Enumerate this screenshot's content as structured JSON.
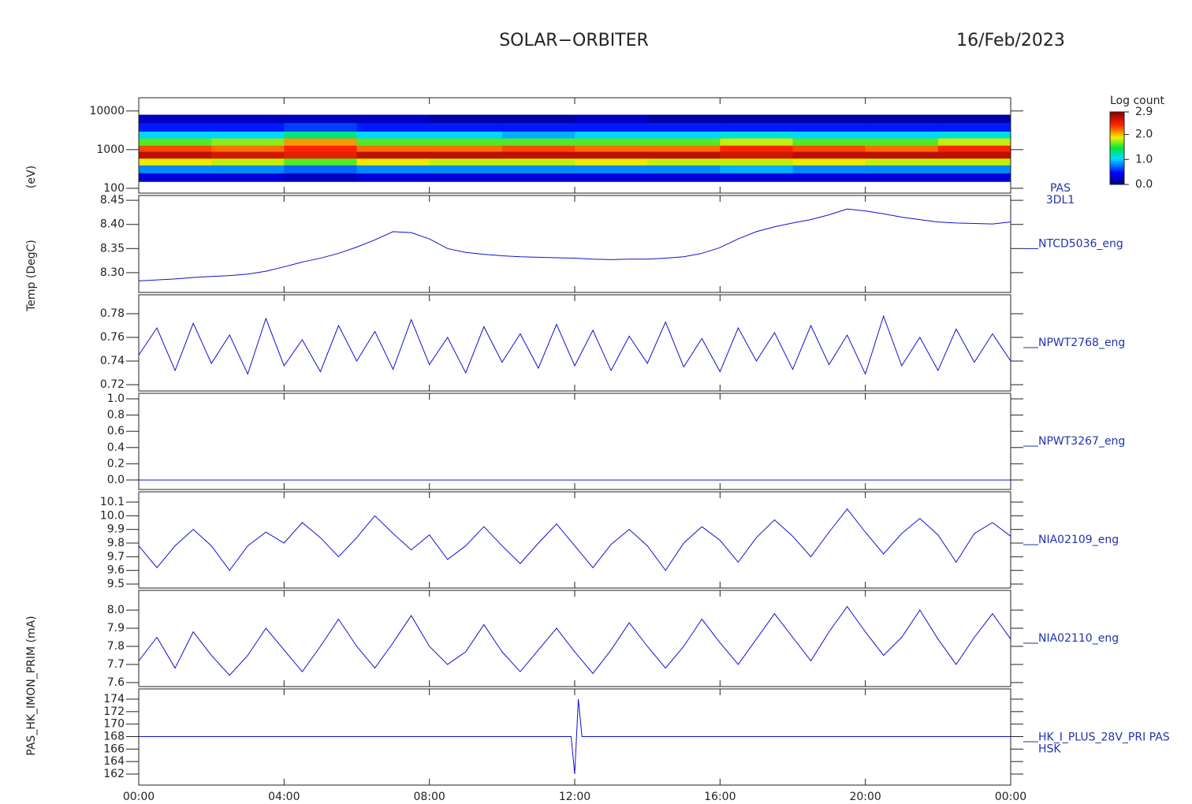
{
  "title": "SOLAR−ORBITER",
  "date": "16/Feb/2023",
  "time_axis": {
    "xlim": [
      0,
      24
    ],
    "xticks": [
      {
        "value": 0,
        "label": "00:00"
      },
      {
        "value": 4,
        "label": "04:00"
      },
      {
        "value": 8,
        "label": "08:00"
      },
      {
        "value": 12,
        "label": "12:00"
      },
      {
        "value": 16,
        "label": "16:00"
      },
      {
        "value": 20,
        "label": "20:00"
      },
      {
        "value": 24,
        "label": "00:00"
      }
    ]
  },
  "chart_data": [
    {
      "type": "heatmap",
      "label": [
        "PAS",
        "3DL1"
      ],
      "ylabel": "(eV)",
      "yscale": "log",
      "ylim": [
        75,
        22000
      ],
      "yticks": [
        100,
        1000,
        10000
      ],
      "xbins": [
        0,
        2,
        4,
        6,
        8,
        10,
        12,
        14,
        16,
        18,
        20,
        22,
        24
      ],
      "ybins": [
        150,
        250,
        400,
        600,
        900,
        1300,
        2000,
        3000,
        5000,
        8000
      ],
      "values": [
        [
          0.3,
          0.3,
          0.2,
          0.3,
          0.3,
          0.3,
          0.3,
          0.3,
          0.3,
          0.3,
          0.3,
          0.3
        ],
        [
          0.8,
          0.8,
          0.7,
          0.8,
          0.8,
          0.8,
          0.8,
          0.8,
          0.9,
          0.8,
          0.8,
          0.8
        ],
        [
          1.9,
          1.8,
          1.6,
          1.9,
          1.8,
          1.8,
          1.9,
          1.8,
          1.8,
          1.9,
          1.8,
          1.8
        ],
        [
          2.7,
          2.6,
          2.5,
          2.7,
          2.7,
          2.7,
          2.7,
          2.7,
          2.6,
          2.7,
          2.7,
          2.7
        ],
        [
          2.3,
          2.2,
          2.4,
          2.2,
          2.2,
          2.3,
          2.2,
          2.2,
          2.4,
          2.3,
          2.2,
          2.4
        ],
        [
          1.6,
          1.7,
          2.1,
          1.6,
          1.6,
          1.6,
          1.6,
          1.6,
          1.8,
          1.6,
          1.6,
          1.8
        ],
        [
          1.0,
          1.0,
          1.3,
          1.0,
          1.0,
          0.9,
          1.0,
          1.0,
          1.1,
          1.0,
          1.0,
          1.1
        ],
        [
          0.5,
          0.5,
          0.6,
          0.5,
          0.5,
          0.5,
          0.5,
          0.5,
          0.5,
          0.5,
          0.5,
          0.5
        ],
        [
          0.2,
          0.2,
          0.2,
          0.2,
          0.1,
          0.1,
          0.2,
          0.1,
          0.1,
          0.1,
          0.1,
          0.1
        ]
      ],
      "zlim": [
        0,
        2.9
      ],
      "colorbar_title": "Log count",
      "zticks": [
        {
          "value": 0,
          "label": "0.0"
        },
        {
          "value": 1,
          "label": "1.0"
        },
        {
          "value": 2,
          "label": "2.0"
        },
        2.9
      ]
    },
    {
      "type": "line",
      "label": [
        "NTCD5036_eng"
      ],
      "ylabel": "Temp (DegC)",
      "color": "#1010d0",
      "ylim": [
        8.259,
        8.46
      ],
      "yticks": [
        {
          "value": 8.3,
          "label": "8.30"
        },
        8.35,
        {
          "value": 8.4,
          "label": "8.40"
        },
        8.45
      ],
      "x": [
        0,
        0.5,
        1,
        1.5,
        2,
        2.5,
        3,
        3.5,
        4,
        4.5,
        5,
        5.5,
        6,
        6.5,
        7,
        7.5,
        8,
        8.5,
        9,
        9.5,
        10,
        10.5,
        11,
        11.5,
        12,
        12.5,
        13,
        13.5,
        14,
        14.5,
        15,
        15.5,
        16,
        16.5,
        17,
        17.5,
        18,
        18.5,
        19,
        19.5,
        20,
        20.5,
        21,
        21.5,
        22,
        22.5,
        23,
        23.5,
        24
      ],
      "values": [
        8.283,
        8.285,
        8.287,
        8.29,
        8.292,
        8.294,
        8.297,
        8.303,
        8.312,
        8.322,
        8.33,
        8.34,
        8.353,
        8.368,
        8.385,
        8.383,
        8.37,
        8.35,
        8.342,
        8.338,
        8.335,
        8.333,
        8.332,
        8.331,
        8.33,
        8.328,
        8.327,
        8.328,
        8.328,
        8.33,
        8.333,
        8.34,
        8.352,
        8.37,
        8.385,
        8.395,
        8.403,
        8.41,
        8.42,
        8.432,
        8.428,
        8.422,
        8.415,
        8.41,
        8.405,
        8.403,
        8.402,
        8.401,
        8.405
      ]
    },
    {
      "type": "line",
      "label": [
        "NPWT2768_eng"
      ],
      "color": "#1010d0",
      "ylim": [
        0.7147,
        0.796
      ],
      "yticks": [
        0.72,
        0.74,
        0.76,
        0.78
      ],
      "x": [
        0,
        0.5,
        1,
        1.5,
        2,
        2.5,
        3,
        3.5,
        4,
        4.5,
        5,
        5.5,
        6,
        6.5,
        7,
        7.5,
        8,
        8.5,
        9,
        9.5,
        10,
        10.5,
        11,
        11.5,
        12,
        12.5,
        13,
        13.5,
        14,
        14.5,
        15,
        15.5,
        16,
        16.5,
        17,
        17.5,
        18,
        18.5,
        19,
        19.5,
        20,
        20.5,
        21,
        21.5,
        22,
        22.5,
        23,
        23.5,
        24
      ],
      "values": [
        0.745,
        0.768,
        0.732,
        0.772,
        0.738,
        0.762,
        0.729,
        0.776,
        0.736,
        0.758,
        0.731,
        0.77,
        0.74,
        0.765,
        0.733,
        0.775,
        0.737,
        0.76,
        0.73,
        0.769,
        0.739,
        0.763,
        0.734,
        0.771,
        0.736,
        0.766,
        0.732,
        0.761,
        0.738,
        0.773,
        0.735,
        0.759,
        0.731,
        0.768,
        0.74,
        0.764,
        0.733,
        0.77,
        0.737,
        0.762,
        0.729,
        0.778,
        0.736,
        0.76,
        0.732,
        0.767,
        0.739,
        0.763,
        0.74
      ]
    },
    {
      "type": "line",
      "label": [
        "NPWT3267_eng"
      ],
      "color": "#1010d0",
      "ylim": [
        -0.117,
        1.068
      ],
      "yticks": [
        {
          "value": 0,
          "label": "0.0"
        },
        0.2,
        0.4,
        0.6,
        0.8,
        {
          "value": 1,
          "label": "1.0"
        }
      ],
      "x": [
        0,
        6,
        12,
        18,
        24
      ],
      "values": [
        0,
        0,
        0,
        0,
        0
      ]
    },
    {
      "type": "line",
      "label": [
        "NIA02109_eng"
      ],
      "color": "#1010d0",
      "ylim": [
        9.471,
        10.175
      ],
      "yticks": [
        9.5,
        9.6,
        9.7,
        9.8,
        9.9,
        {
          "value": 10,
          "label": "10.0"
        },
        10.1
      ],
      "x": [
        0,
        0.5,
        1,
        1.5,
        2,
        2.5,
        3,
        3.5,
        4,
        4.5,
        5,
        5.5,
        6,
        6.5,
        7,
        7.5,
        8,
        8.5,
        9,
        9.5,
        10,
        10.5,
        11,
        11.5,
        12,
        12.5,
        13,
        13.5,
        14,
        14.5,
        15,
        15.5,
        16,
        16.5,
        17,
        17.5,
        18,
        18.5,
        19,
        19.5,
        20,
        20.5,
        21,
        21.5,
        22,
        22.5,
        23,
        23.5,
        24
      ],
      "values": [
        9.78,
        9.62,
        9.78,
        9.9,
        9.78,
        9.6,
        9.78,
        9.88,
        9.8,
        9.95,
        9.84,
        9.7,
        9.84,
        10.0,
        9.87,
        9.75,
        9.86,
        9.68,
        9.78,
        9.92,
        9.78,
        9.65,
        9.8,
        9.94,
        9.78,
        9.62,
        9.79,
        9.9,
        9.78,
        9.6,
        9.8,
        9.92,
        9.82,
        9.66,
        9.84,
        9.97,
        9.85,
        9.7,
        9.88,
        10.05,
        9.88,
        9.72,
        9.87,
        9.98,
        9.86,
        9.66,
        9.87,
        9.95,
        9.85
      ]
    },
    {
      "type": "line",
      "label": [
        "NIA02110_eng"
      ],
      "color": "#1010d0",
      "ylim": [
        7.578,
        8.109
      ],
      "yticks": [
        7.6,
        7.7,
        7.8,
        7.9,
        {
          "value": 8,
          "label": "8.0"
        }
      ],
      "x": [
        0,
        0.5,
        1,
        1.5,
        2,
        2.5,
        3,
        3.5,
        4,
        4.5,
        5,
        5.5,
        6,
        6.5,
        7,
        7.5,
        8,
        8.5,
        9,
        9.5,
        10,
        10.5,
        11,
        11.5,
        12,
        12.5,
        13,
        13.5,
        14,
        14.5,
        15,
        15.5,
        16,
        16.5,
        17,
        17.5,
        18,
        18.5,
        19,
        19.5,
        20,
        20.5,
        21,
        21.5,
        22,
        22.5,
        23,
        23.5,
        24
      ],
      "values": [
        7.72,
        7.85,
        7.68,
        7.88,
        7.75,
        7.64,
        7.75,
        7.9,
        7.78,
        7.66,
        7.8,
        7.95,
        7.8,
        7.68,
        7.82,
        7.97,
        7.8,
        7.7,
        7.77,
        7.92,
        7.77,
        7.66,
        7.78,
        7.9,
        7.77,
        7.65,
        7.78,
        7.93,
        7.8,
        7.68,
        7.8,
        7.95,
        7.82,
        7.7,
        7.84,
        7.98,
        7.85,
        7.72,
        7.88,
        8.02,
        7.88,
        7.75,
        7.85,
        8.0,
        7.84,
        7.7,
        7.85,
        7.98,
        7.84
      ]
    },
    {
      "type": "line",
      "label": [
        "HK_I_PLUS_28V_PRI PAS",
        "HSK"
      ],
      "ylabel": "PAS_HK_IMON_PRIM (mA)",
      "color": "#1010d0",
      "ylim": [
        160.23,
        175.64
      ],
      "yticks": [
        162,
        164,
        166,
        168,
        170,
        172,
        174
      ],
      "x": [
        0,
        2,
        4,
        6,
        8,
        10,
        11.9,
        12.0,
        12.1,
        12.2,
        14,
        16,
        18,
        20,
        22,
        24
      ],
      "values": [
        168,
        168,
        168,
        168,
        168,
        168,
        168,
        162,
        174,
        168,
        168,
        168,
        168,
        168,
        168,
        168
      ]
    }
  ]
}
